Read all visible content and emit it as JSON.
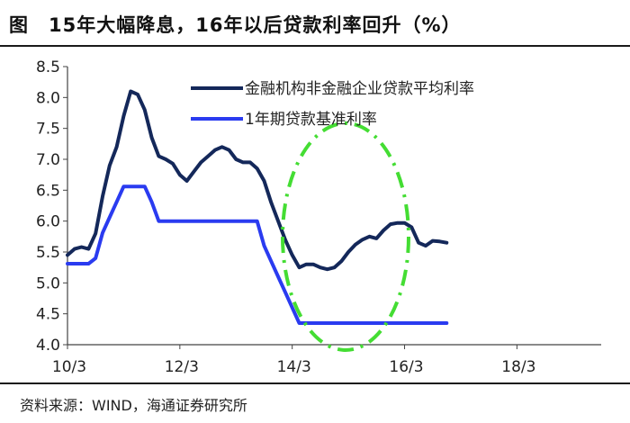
{
  "header": {
    "figure_label": "图",
    "title": "15年大幅降息，16年以后贷款利率回升（%）"
  },
  "footer": {
    "source": "资料来源：WIND，海通证券研究所"
  },
  "chart_data": {
    "type": "line",
    "title": "15年大幅降息，16年以后贷款利率回升（%）",
    "xlabel": "",
    "ylabel": "",
    "ylim": [
      4.0,
      8.5
    ],
    "yticks": [
      "8.5",
      "8.0",
      "7.5",
      "7.0",
      "6.5",
      "6.0",
      "5.5",
      "5.0",
      "4.5",
      "4.0"
    ],
    "xticks": [
      {
        "label": "10/3",
        "x": 0
      },
      {
        "label": "12/3",
        "x": 24
      },
      {
        "label": "14/3",
        "x": 48
      },
      {
        "label": "16/3",
        "x": 72
      },
      {
        "label": "18/3",
        "x": 96
      }
    ],
    "xlim": [
      0,
      114
    ],
    "legend_position": "top-right",
    "grid": false,
    "series": [
      {
        "name": "金融机构非金融企业贷款平均利率",
        "color": "#14285a",
        "points": [
          [
            0,
            5.45
          ],
          [
            1.5,
            5.55
          ],
          [
            3,
            5.58
          ],
          [
            4.5,
            5.55
          ],
          [
            6,
            5.8
          ],
          [
            7.5,
            6.4
          ],
          [
            9,
            6.9
          ],
          [
            10.5,
            7.2
          ],
          [
            12,
            7.7
          ],
          [
            13.5,
            8.1
          ],
          [
            15,
            8.05
          ],
          [
            16.5,
            7.8
          ],
          [
            18,
            7.35
          ],
          [
            19.5,
            7.05
          ],
          [
            21,
            7.0
          ],
          [
            22.5,
            6.93
          ],
          [
            24,
            6.75
          ],
          [
            25.5,
            6.65
          ],
          [
            27,
            6.8
          ],
          [
            28.5,
            6.95
          ],
          [
            30,
            7.05
          ],
          [
            31.5,
            7.15
          ],
          [
            33,
            7.2
          ],
          [
            34.5,
            7.15
          ],
          [
            36,
            7.0
          ],
          [
            37.5,
            6.95
          ],
          [
            39,
            6.95
          ],
          [
            40.5,
            6.85
          ],
          [
            42,
            6.65
          ],
          [
            43.5,
            6.3
          ],
          [
            45,
            6.0
          ],
          [
            46.5,
            5.7
          ],
          [
            48,
            5.45
          ],
          [
            49.5,
            5.25
          ],
          [
            51,
            5.3
          ],
          [
            52.5,
            5.3
          ],
          [
            54,
            5.25
          ],
          [
            55.5,
            5.22
          ],
          [
            57,
            5.25
          ],
          [
            58.5,
            5.35
          ],
          [
            60,
            5.5
          ],
          [
            61.5,
            5.62
          ],
          [
            63,
            5.7
          ],
          [
            64.5,
            5.75
          ],
          [
            66,
            5.72
          ],
          [
            67.5,
            5.85
          ],
          [
            69,
            5.95
          ],
          [
            70.5,
            5.97
          ],
          [
            72,
            5.97
          ],
          [
            73.5,
            5.9
          ],
          [
            75,
            5.65
          ],
          [
            76.5,
            5.6
          ],
          [
            78,
            5.68
          ],
          [
            79.5,
            5.67
          ],
          [
            81,
            5.65
          ]
        ]
      },
      {
        "name": "1年期贷款基准利率",
        "color": "#2a3bf0",
        "points": [
          [
            0,
            5.31
          ],
          [
            4.5,
            5.31
          ],
          [
            6,
            5.4
          ],
          [
            7.5,
            5.81
          ],
          [
            9,
            6.06
          ],
          [
            10.5,
            6.31
          ],
          [
            12,
            6.56
          ],
          [
            13.5,
            6.56
          ],
          [
            15,
            6.56
          ],
          [
            16.5,
            6.56
          ],
          [
            18,
            6.31
          ],
          [
            19.5,
            6.0
          ],
          [
            21,
            6.0
          ],
          [
            40.5,
            6.0
          ],
          [
            42,
            5.6
          ],
          [
            43.5,
            5.35
          ],
          [
            45,
            5.1
          ],
          [
            46.5,
            4.85
          ],
          [
            48,
            4.6
          ],
          [
            49.5,
            4.35
          ],
          [
            81,
            4.35
          ]
        ]
      }
    ]
  }
}
